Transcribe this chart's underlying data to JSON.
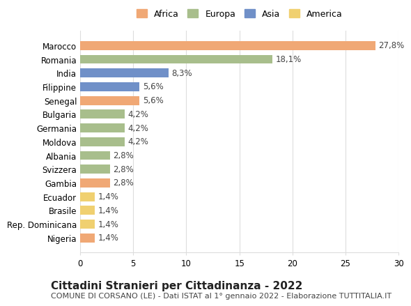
{
  "countries": [
    "Marocco",
    "Romania",
    "India",
    "Filippine",
    "Senegal",
    "Bulgaria",
    "Germania",
    "Moldova",
    "Albania",
    "Svizzera",
    "Gambia",
    "Ecuador",
    "Brasile",
    "Rep. Dominicana",
    "Nigeria"
  ],
  "values": [
    27.8,
    18.1,
    8.3,
    5.6,
    5.6,
    4.2,
    4.2,
    4.2,
    2.8,
    2.8,
    2.8,
    1.4,
    1.4,
    1.4,
    1.4
  ],
  "labels": [
    "27,8%",
    "18,1%",
    "8,3%",
    "5,6%",
    "5,6%",
    "4,2%",
    "4,2%",
    "4,2%",
    "2,8%",
    "2,8%",
    "2,8%",
    "1,4%",
    "1,4%",
    "1,4%",
    "1,4%"
  ],
  "continents": [
    "Africa",
    "Europa",
    "Asia",
    "Asia",
    "Africa",
    "Europa",
    "Europa",
    "Europa",
    "Europa",
    "Europa",
    "Africa",
    "America",
    "America",
    "America",
    "Africa"
  ],
  "colors": {
    "Africa": "#F0A875",
    "Europa": "#A8BE8C",
    "Asia": "#7090C8",
    "America": "#F0D070"
  },
  "legend_order": [
    "Africa",
    "Europa",
    "Asia",
    "America"
  ],
  "xlim": [
    0,
    30
  ],
  "xticks": [
    0,
    5,
    10,
    15,
    20,
    25,
    30
  ],
  "title1": "Cittadini Stranieri per Cittadinanza - 2022",
  "title2": "COMUNE DI CORSANO (LE) - Dati ISTAT al 1° gennaio 2022 - Elaborazione TUTTITALIA.IT",
  "background_color": "#ffffff",
  "grid_color": "#dddddd",
  "bar_height": 0.65,
  "label_fontsize": 8.5,
  "ytick_fontsize": 8.5,
  "xtick_fontsize": 8.5,
  "title1_fontsize": 11,
  "title2_fontsize": 8
}
